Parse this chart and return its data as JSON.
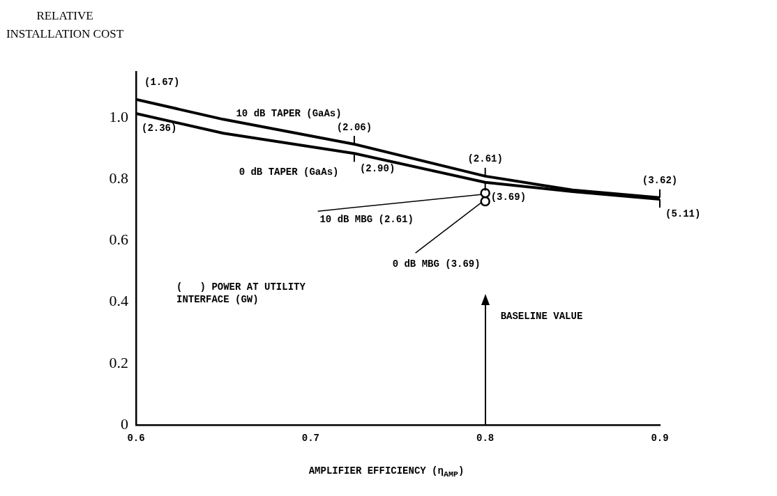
{
  "chart_data": {
    "type": "line",
    "xlabel": "AMPLIFIER EFFICIENCY (η$_{AMP}$)",
    "ylabel": "RELATIVE INSTALLATION COST",
    "xlim": [
      0.6,
      0.9
    ],
    "xticks": [
      0.6,
      0.7,
      0.8,
      0.9
    ],
    "ylim": [
      0,
      1.15
    ],
    "yticks": [
      0,
      0.2,
      0.4,
      0.6,
      0.8,
      {
        "value": 1,
        "label": "1.0"
      }
    ],
    "grid": false,
    "legend": false,
    "marker": "none",
    "line_style": "solid",
    "series": [
      {
        "name": "10 dB TAPER (GaAs)",
        "color": "#000000",
        "x": [
          0.6,
          0.65,
          0.725,
          0.8,
          0.85,
          0.9
        ],
        "values": [
          1.06,
          0.995,
          0.914,
          0.81,
          0.765,
          0.74
        ]
      },
      {
        "name": "0 dB TAPER (GaAs)",
        "color": "#000000",
        "x": [
          0.6,
          0.65,
          0.725,
          0.8,
          0.85,
          0.9
        ],
        "values": [
          1.014,
          0.95,
          0.884,
          0.79,
          0.76,
          0.735
        ]
      },
      {
        "name": "10 dB MBG (2.61)",
        "type": "scatter",
        "marker": "circle",
        "color": "#000000",
        "x": [
          0.8
        ],
        "values": [
          0.755
        ]
      },
      {
        "name": "0 dB MBG (3.69)",
        "type": "scatter",
        "marker": "circle",
        "color": "#000000",
        "x": [
          0.8
        ],
        "values": [
          0.728
        ]
      }
    ],
    "ref_lines": [
      {
        "axis": "x",
        "value": 0.8,
        "label": "BASELINE VALUE"
      }
    ],
    "annotations": [
      {
        "text": "(1.67)",
        "x": 0.6,
        "y": 1.06
      },
      {
        "text": "(2.36)",
        "x": 0.6,
        "y": 1.014
      },
      {
        "text": "(2.06)",
        "x": 0.725,
        "y": 0.914
      },
      {
        "text": "(2.90)",
        "x": 0.725,
        "y": 0.884
      },
      {
        "text": "(2.61)",
        "x": 0.8,
        "y": 0.81
      },
      {
        "text": "(3.69)",
        "x": 0.8,
        "y": 0.79
      },
      {
        "text": "(3.62)",
        "x": 0.9,
        "y": 0.74
      },
      {
        "text": "(5.11)",
        "x": 0.9,
        "y": 0.735
      },
      "(   ) POWER AT UTILITY INTERFACE (GW)"
    ]
  }
}
